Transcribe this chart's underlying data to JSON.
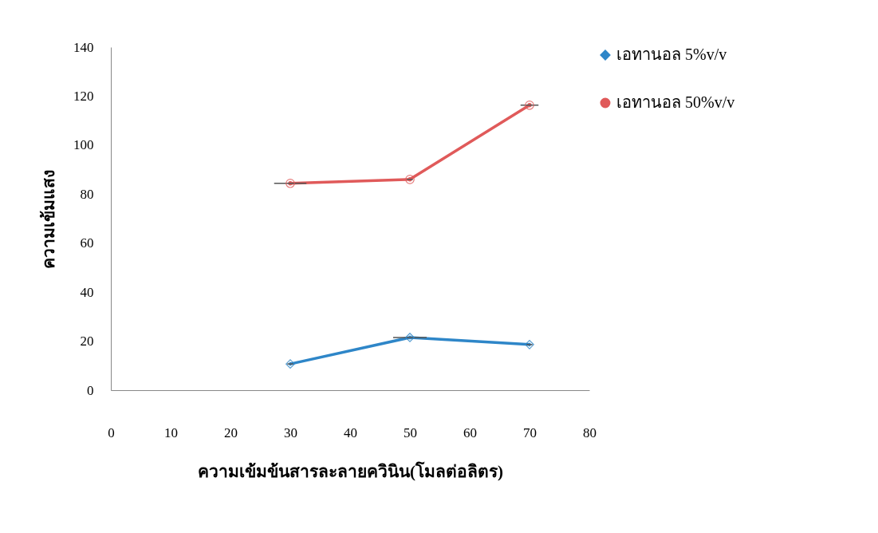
{
  "chart_data": {
    "type": "line",
    "xlabel": "ความเข้มข้นสารละลายควินิน(โมลต่อลิตร)",
    "ylabel": "ความเข้มแสง",
    "x": [
      30,
      50,
      70
    ],
    "series": [
      {
        "name": "เอทานอล 5%v/v",
        "color": "#2e86c8",
        "marker": "diamond",
        "values": [
          10.7,
          21.5,
          18.6
        ],
        "xerrors": [
          0.5,
          2.8,
          0.5
        ]
      },
      {
        "name": "เอทานอล 50%v/v",
        "color": "#e05a5a",
        "marker": "circle",
        "values": [
          84.4,
          86,
          116.3
        ],
        "xerrors": [
          2.7,
          0.5,
          1.5
        ]
      }
    ],
    "xlim": [
      0,
      80
    ],
    "xticks": [
      0,
      10,
      20,
      30,
      40,
      50,
      60,
      70,
      80
    ],
    "ylim": [
      0,
      140
    ],
    "yticks": [
      0,
      20,
      40,
      60,
      80,
      100,
      120,
      140
    ],
    "grid": false,
    "legend": "right",
    "line_style": "solid"
  }
}
